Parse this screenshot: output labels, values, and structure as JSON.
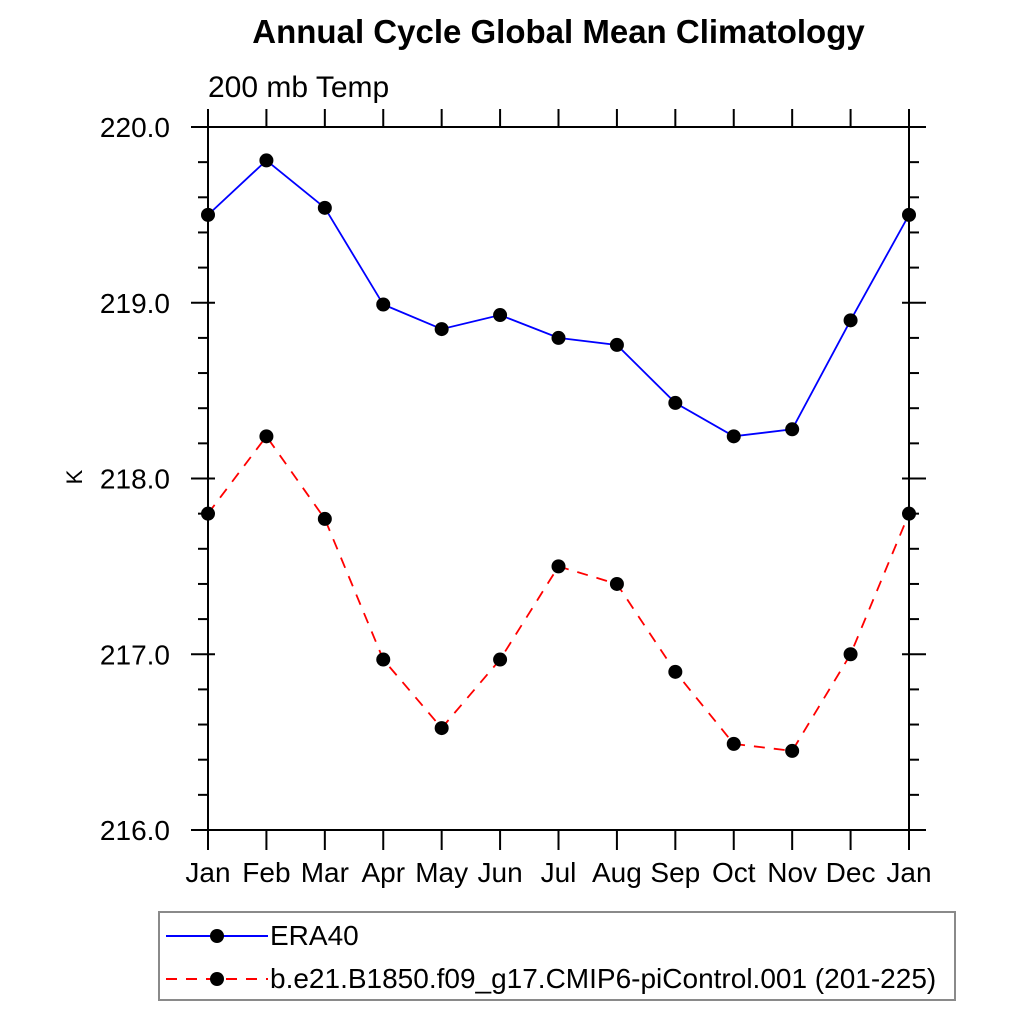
{
  "chart_data": {
    "type": "line",
    "title": "Annual Cycle Global Mean Climatology",
    "subtitle": "200 mb Temp",
    "ylabel": "K",
    "xlabel": "",
    "categories": [
      "Jan",
      "Feb",
      "Mar",
      "Apr",
      "May",
      "Jun",
      "Jul",
      "Aug",
      "Sep",
      "Oct",
      "Nov",
      "Dec",
      "Jan"
    ],
    "x_tick_labels": [
      "Jan",
      "Feb",
      "Mar",
      "Apr",
      "May",
      "Jun",
      "Jul",
      "Aug",
      "Sep",
      "Oct",
      "Nov",
      "Dec",
      "Jan"
    ],
    "y_tick_labels": [
      "216.0",
      "217.0",
      "218.0",
      "219.0",
      "220.0"
    ],
    "ylim": [
      216.0,
      220.0
    ],
    "y_major_step": 1.0,
    "y_minor_step": 0.2,
    "grid": false,
    "legend_position": "bottom-left",
    "series": [
      {
        "name": "ERA40",
        "line_color": "#0000ff",
        "line_style": "solid",
        "marker": "filled-circle",
        "marker_color": "#000000",
        "values": [
          219.5,
          219.81,
          219.54,
          218.99,
          218.85,
          218.93,
          218.8,
          218.76,
          218.43,
          218.24,
          218.28,
          218.9,
          219.5
        ]
      },
      {
        "name": "b.e21.B1850.f09_g17.CMIP6-piControl.001 (201-225)",
        "line_color": "#ff0000",
        "line_style": "dashed",
        "marker": "filled-circle",
        "marker_color": "#000000",
        "values": [
          217.8,
          218.24,
          217.77,
          216.97,
          216.58,
          216.97,
          217.5,
          217.4,
          216.9,
          216.49,
          216.45,
          217.0,
          217.8
        ]
      }
    ]
  },
  "colors": {
    "axis": "#000000",
    "background": "#ffffff",
    "legend_border": "#8a8a8a"
  }
}
